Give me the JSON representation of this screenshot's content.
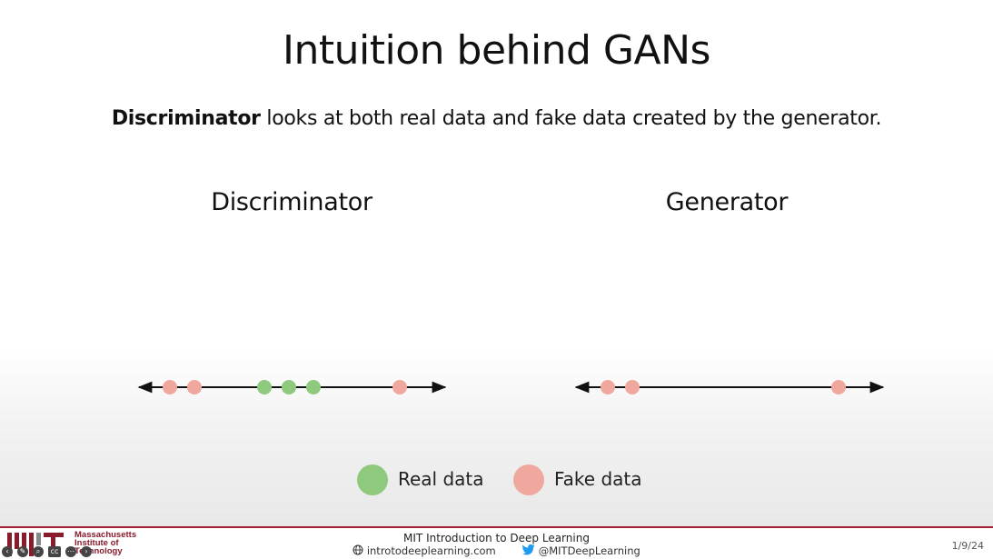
{
  "slide": {
    "title": "Intuition behind GANs",
    "subtitle_bold": "Discriminator",
    "subtitle_rest": " looks at both real data and fake data created by the generator."
  },
  "panels": [
    {
      "title": "Discriminator",
      "points": [
        {
          "type": "fake"
        },
        {
          "type": "fake"
        },
        {
          "type": "real"
        },
        {
          "type": "real"
        },
        {
          "type": "real"
        },
        {
          "type": "fake"
        }
      ]
    },
    {
      "title": "Generator",
      "points": [
        {
          "type": "fake"
        },
        {
          "type": "fake"
        },
        {
          "type": "fake"
        }
      ]
    }
  ],
  "legend": {
    "real_label": "Real data",
    "fake_label": "Fake data"
  },
  "colors": {
    "real": "#8fc97e",
    "fake": "#f0a89e",
    "mit_red": "#8a1b2c"
  },
  "footer": {
    "institution_line1": "Massachusetts",
    "institution_line2": "Institute of",
    "institution_line3": "Technology",
    "course": "MIT Introduction to Deep Learning",
    "website": "introtodeeplearning.com",
    "twitter": "@MITDeepLearning",
    "date": "1/9/24",
    "icons": [
      "globe-icon",
      "twitter-icon"
    ]
  }
}
